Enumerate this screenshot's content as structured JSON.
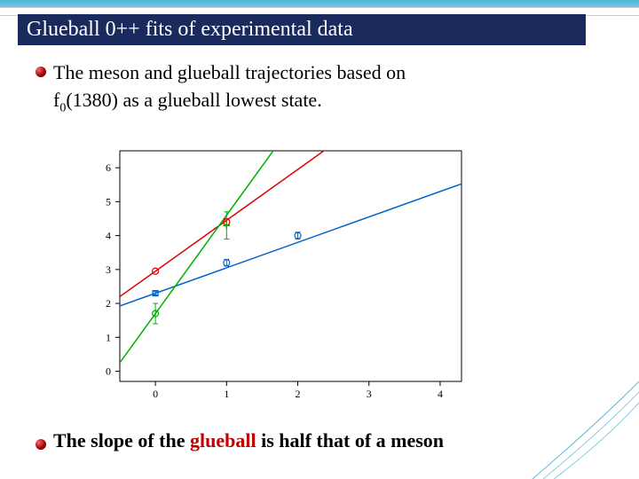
{
  "title": "Glueball 0++  fits of experimental data",
  "bullet1_line1": "The meson and glueball trajectories based on",
  "bullet1_line2_prefix": "f",
  "bullet1_line2_sub": "0",
  "bullet1_line2_suffix": "(1380) as a glueball lowest state.",
  "bottom_prefix": "The slope of the  ",
  "bottom_glueball": "glueball",
  "bottom_suffix": "  is half that of a meson",
  "chart": {
    "type": "line-scatter",
    "xlim": [
      -0.5,
      4.3
    ],
    "ylim": [
      -0.3,
      6.5
    ],
    "xticks": [
      0,
      1,
      2,
      3,
      4
    ],
    "yticks": [
      0,
      1,
      2,
      3,
      4,
      5,
      6
    ],
    "background": "#ffffff",
    "axis_color": "#000000",
    "tick_fontsize": 12,
    "series": [
      {
        "name": "red-line",
        "type": "line",
        "color": "#e00000",
        "width": 1.5,
        "x": [
          -0.5,
          4.3
        ],
        "y_at_0": 2.95,
        "slope": 1.5
      },
      {
        "name": "blue-line",
        "type": "line",
        "color": "#0060d0",
        "width": 1.5,
        "x": [
          -0.5,
          4.3
        ],
        "y_at_0": 2.3,
        "slope": 0.75
      },
      {
        "name": "green-line",
        "type": "line",
        "color": "#00b000",
        "width": 1.5,
        "x": [
          -0.5,
          4.3
        ],
        "y_at_0": 1.7,
        "slope": 2.9
      }
    ],
    "markers": [
      {
        "name": "red-pt0",
        "shape": "circle",
        "color": "#e00000",
        "x": 0,
        "y": 2.95,
        "err": 0
      },
      {
        "name": "red-pt1",
        "shape": "circle",
        "color": "#e00000",
        "x": 1,
        "y": 4.4,
        "err": 0.1
      },
      {
        "name": "blue-pt0",
        "shape": "square",
        "color": "#0060d0",
        "x": 0,
        "y": 2.3,
        "err": 0.05
      },
      {
        "name": "blue-pt1",
        "shape": "circle",
        "color": "#0060d0",
        "x": 1,
        "y": 3.2,
        "err": 0.1
      },
      {
        "name": "blue-pt2",
        "shape": "circle",
        "color": "#0060d0",
        "x": 2,
        "y": 4.0,
        "err": 0.1
      },
      {
        "name": "green-pt0",
        "shape": "circle",
        "color": "#00b000",
        "x": 0,
        "y": 1.7,
        "err": 0.3
      },
      {
        "name": "green-pt1",
        "shape": "plus",
        "color": "#00b000",
        "x": 1,
        "y": 4.3,
        "err": 0.4
      }
    ]
  }
}
